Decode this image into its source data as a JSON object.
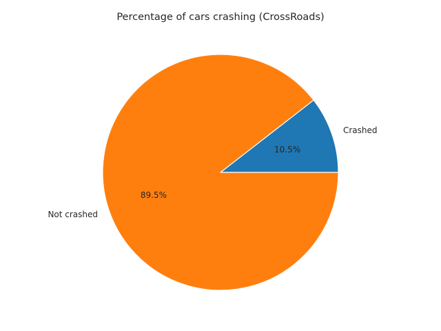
{
  "chart_data": {
    "type": "pie",
    "title": "Percentage of cars crashing (CrossRoads)",
    "slices": [
      {
        "label": "Crashed",
        "value": 10.5,
        "pct_label": "10.5%",
        "color": "#1f77b4"
      },
      {
        "label": "Not crashed",
        "value": 89.5,
        "pct_label": "89.5%",
        "color": "#ff7f0e"
      }
    ],
    "start_angle_deg": 0,
    "direction": "counterclockwise",
    "legend": "none"
  }
}
